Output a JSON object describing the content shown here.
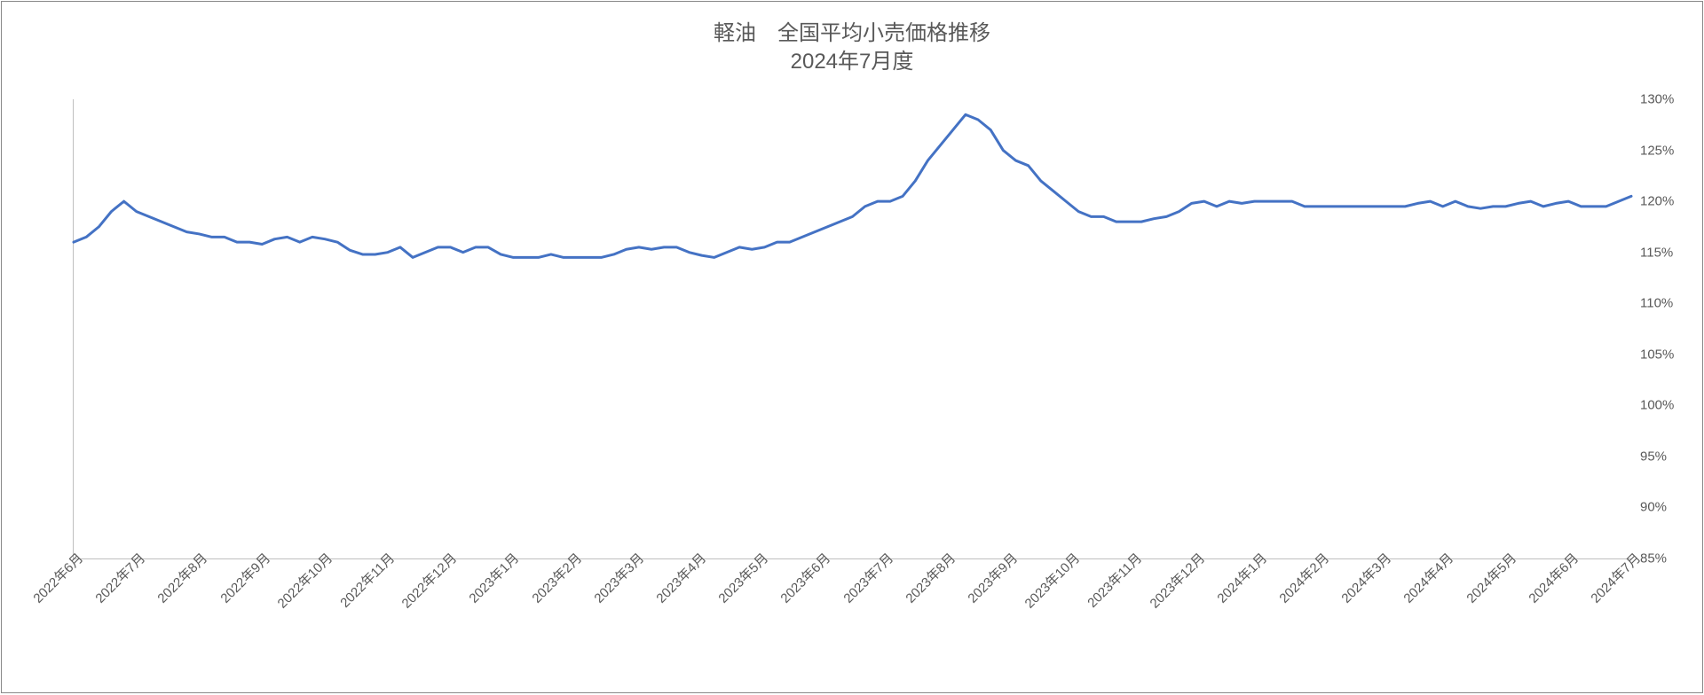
{
  "chart": {
    "type": "line",
    "title_line1": "軽油　全国平均小売価格推移",
    "title_line2": "2024年7月度",
    "title_fontsize": 24,
    "title_color": "#595959",
    "border_color": "#888888",
    "background_color": "#ffffff",
    "axis_color": "#bfbfbf",
    "line_color": "#4472c4",
    "line_width": 3,
    "label_fontsize": 15,
    "label_color": "#595959",
    "ylim": [
      85,
      130
    ],
    "ytick_step": 5,
    "yticks": [
      "85%",
      "90%",
      "95%",
      "100%",
      "105%",
      "110%",
      "115%",
      "120%",
      "125%",
      "130%"
    ],
    "x_labels": [
      "2022年6月",
      "2022年7月",
      "2022年8月",
      "2022年9月",
      "2022年10月",
      "2022年11月",
      "2022年12月",
      "2023年1月",
      "2023年2月",
      "2023年3月",
      "2023年4月",
      "2023年5月",
      "2023年6月",
      "2023年7月",
      "2023年8月",
      "2023年9月",
      "2023年10月",
      "2023年11月",
      "2023年12月",
      "2024年1月",
      "2024年2月",
      "2024年3月",
      "2024年4月",
      "2024年5月",
      "2024年6月",
      "2024年7月"
    ],
    "x_label_rotation": -45,
    "values": [
      116.0,
      116.5,
      117.5,
      119.0,
      120.0,
      119.0,
      118.5,
      118.0,
      117.5,
      117.0,
      116.8,
      116.5,
      116.5,
      116.0,
      116.0,
      115.8,
      116.3,
      116.5,
      116.0,
      116.5,
      116.3,
      116.0,
      115.2,
      114.8,
      114.8,
      115.0,
      115.5,
      114.5,
      115.0,
      115.5,
      115.5,
      115.0,
      115.5,
      115.5,
      114.8,
      114.5,
      114.5,
      114.5,
      114.8,
      114.5,
      114.5,
      114.5,
      114.5,
      114.8,
      115.3,
      115.5,
      115.3,
      115.5,
      115.5,
      115.0,
      114.7,
      114.5,
      115.0,
      115.5,
      115.3,
      115.5,
      116.0,
      116.0,
      116.5,
      117.0,
      117.5,
      118.0,
      118.5,
      119.5,
      120.0,
      120.0,
      120.5,
      122.0,
      124.0,
      125.5,
      127.0,
      128.5,
      128.0,
      127.0,
      125.0,
      124.0,
      123.5,
      122.0,
      121.0,
      120.0,
      119.0,
      118.5,
      118.5,
      118.0,
      118.0,
      118.0,
      118.3,
      118.5,
      119.0,
      119.8,
      120.0,
      119.5,
      120.0,
      119.8,
      120.0,
      120.0,
      120.0,
      120.0,
      119.5,
      119.5,
      119.5,
      119.5,
      119.5,
      119.5,
      119.5,
      119.5,
      119.5,
      119.8,
      120.0,
      119.5,
      120.0,
      119.5,
      119.3,
      119.5,
      119.5,
      119.8,
      120.0,
      119.5,
      119.8,
      120.0,
      119.5,
      119.5,
      119.5,
      120.0,
      120.5
    ],
    "x_major_count": 26
  }
}
